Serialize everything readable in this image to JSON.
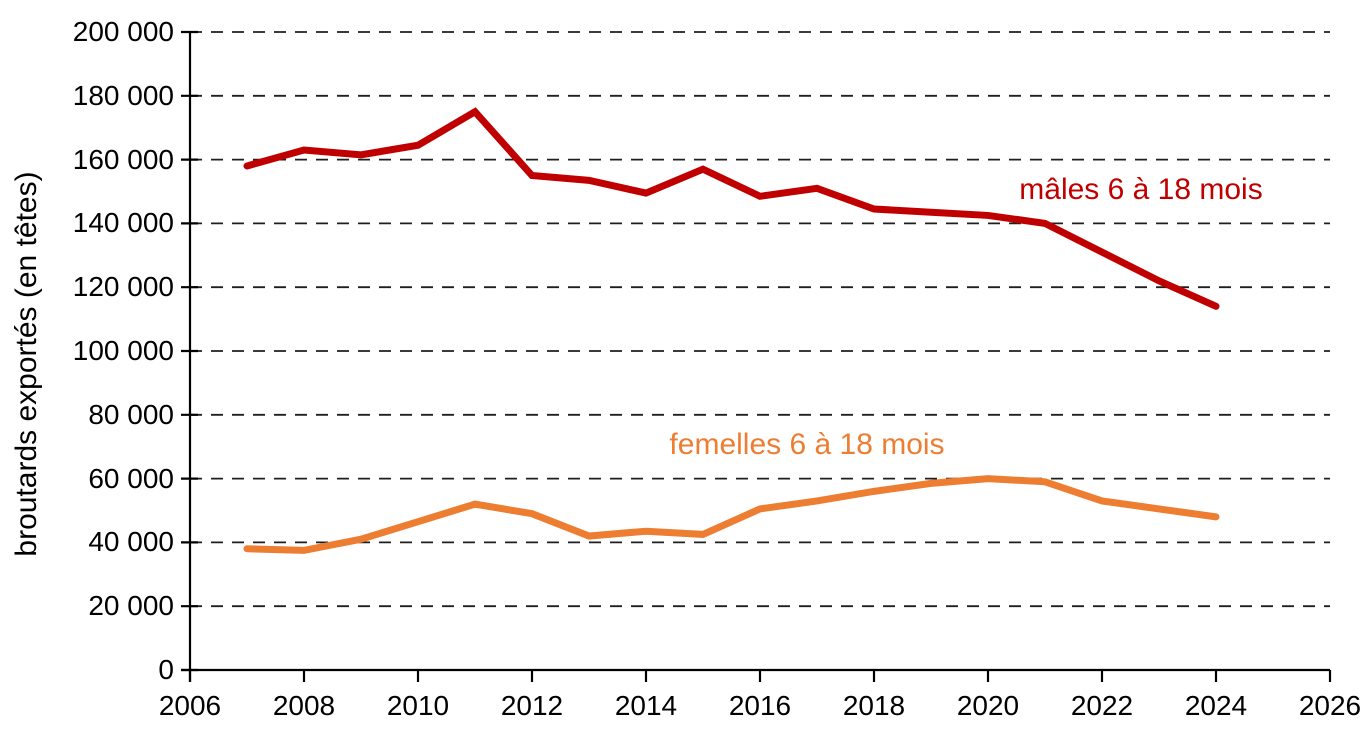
{
  "page": {
    "background": "#ffffff"
  },
  "chart_data": {
    "type": "line",
    "title": "",
    "xlabel": "",
    "ylabel": "broutards exportés (en têtes)",
    "xlim": [
      2006,
      2026
    ],
    "ylim": [
      0,
      200000
    ],
    "grid": {
      "show": true,
      "style": "dashed",
      "color": "#1f1f1f",
      "direction": "horizontal"
    },
    "legend": {
      "position": "inline-labels"
    },
    "x_ticks": {
      "values": [
        2006,
        2008,
        2010,
        2012,
        2014,
        2016,
        2018,
        2020,
        2022,
        2024,
        2026
      ],
      "labels": [
        "2006",
        "2008",
        "2010",
        "2012",
        "2014",
        "2016",
        "2018",
        "2020",
        "2022",
        "2024",
        "2026"
      ]
    },
    "y_ticks": {
      "values": [
        0,
        20000,
        40000,
        60000,
        80000,
        100000,
        120000,
        140000,
        160000,
        180000,
        200000
      ],
      "labels": [
        "0",
        "20 000",
        "40 000",
        "60 000",
        "80 000",
        "100 000",
        "120 000",
        "140 000",
        "160 000",
        "180 000",
        "200 000"
      ]
    },
    "x": [
      2007,
      2008,
      2009,
      2010,
      2011,
      2012,
      2013,
      2014,
      2015,
      2016,
      2017,
      2018,
      2019,
      2020,
      2021,
      2022,
      2023,
      2024
    ],
    "series": [
      {
        "name": "mâles 6 à 18 mois",
        "color": "#c00000",
        "values": [
          158000,
          163000,
          161500,
          164500,
          175000,
          155000,
          153500,
          149500,
          157000,
          148500,
          151000,
          144500,
          143500,
          142500,
          140000,
          131000,
          122000,
          114000
        ]
      },
      {
        "name": "femelles 6 à 18 mois",
        "color": "#ed7d31",
        "values": [
          38000,
          37500,
          41000,
          46500,
          52000,
          49000,
          42000,
          43500,
          42500,
          50500,
          53000,
          56000,
          58500,
          60000,
          59000,
          53000,
          50500,
          48000
        ]
      }
    ]
  }
}
